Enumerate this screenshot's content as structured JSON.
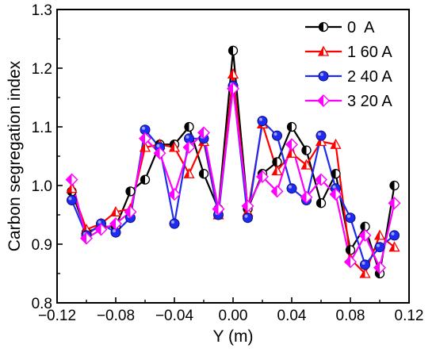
{
  "chart_data": {
    "type": "line",
    "title": "",
    "xlabel": "Y (m)",
    "ylabel": "Carbon segregation index",
    "xlim": [
      -0.12,
      0.12
    ],
    "ylim": [
      0.8,
      1.3
    ],
    "xticks": [
      -0.12,
      -0.08,
      -0.04,
      0.0,
      0.04,
      0.08,
      0.12
    ],
    "yticks": [
      0.8,
      0.9,
      1.0,
      1.1,
      1.2,
      1.3
    ],
    "xtick_labels": [
      "-0.12",
      "-0.08",
      "-0.04",
      "0.00",
      "0.04",
      "0.08",
      "0.12"
    ],
    "ytick_labels": [
      "0.8",
      "0.9",
      "1.0",
      "1.1",
      "1.2",
      "1.3"
    ],
    "grid": false,
    "legend_position": "top-right",
    "x": [
      -0.11,
      -0.1,
      -0.09,
      -0.08,
      -0.07,
      -0.06,
      -0.05,
      -0.04,
      -0.03,
      -0.02,
      -0.01,
      0.0,
      0.01,
      0.02,
      0.03,
      0.04,
      0.05,
      0.06,
      0.07,
      0.08,
      0.09,
      0.1,
      0.11
    ],
    "series": [
      {
        "name": "0  A",
        "color": "#000000",
        "marker": "half-circle",
        "values": [
          0.99,
          0.92,
          0.93,
          0.93,
          0.99,
          1.01,
          1.07,
          1.07,
          1.1,
          1.02,
          0.96,
          1.23,
          0.96,
          1.02,
          1.04,
          1.1,
          1.06,
          0.97,
          1.02,
          0.89,
          0.93,
          0.85,
          1.0
        ]
      },
      {
        "name": "1 60 A",
        "color": "#ff0000",
        "marker": "triangle",
        "values": [
          0.995,
          0.925,
          0.935,
          0.955,
          0.96,
          1.065,
          1.07,
          1.065,
          1.02,
          1.075,
          0.95,
          1.19,
          0.955,
          1.105,
          1.025,
          1.055,
          1.035,
          1.075,
          1.07,
          0.875,
          0.85,
          0.915,
          0.895
        ]
      },
      {
        "name": "2 40 A",
        "color": "#1f2bf0",
        "marker": "circle",
        "values": [
          0.975,
          0.915,
          0.935,
          0.92,
          0.945,
          1.095,
          1.065,
          0.935,
          1.08,
          1.08,
          0.95,
          1.17,
          0.945,
          1.11,
          1.085,
          0.995,
          0.975,
          1.085,
          0.995,
          0.945,
          0.865,
          0.895,
          0.915
        ]
      },
      {
        "name": "3 20 A",
        "color": "#ff00ff",
        "marker": "diamond",
        "values": [
          1.01,
          0.91,
          0.925,
          0.935,
          0.955,
          1.08,
          1.055,
          0.985,
          1.065,
          1.09,
          0.96,
          1.165,
          0.965,
          1.015,
          0.99,
          1.07,
          0.98,
          1.01,
          0.985,
          0.87,
          0.915,
          0.86,
          0.97
        ]
      }
    ]
  }
}
